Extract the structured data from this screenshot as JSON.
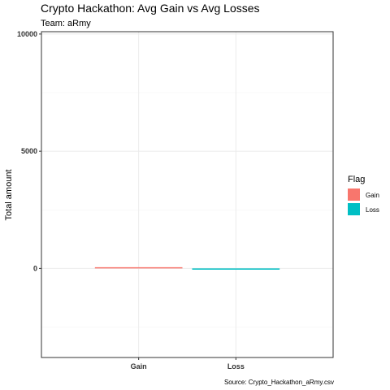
{
  "chart_data": {
    "type": "bar",
    "title": "Crypto Hackathon: Avg Gain vs Avg Losses",
    "subtitle": "Team: aRmy",
    "caption": "Source: Crypto_Hackathon_aRmy.csv",
    "xlabel": "",
    "ylabel": "Total amount",
    "categories": [
      "Gain",
      "Loss"
    ],
    "values": [
      20,
      -10
    ],
    "ylim": [
      -3800,
      10100
    ],
    "yticks": [
      0,
      5000,
      10000
    ],
    "ytick_labels": [
      "0",
      "5000",
      "10000"
    ],
    "grid": true,
    "legend": {
      "title": "Flag",
      "position": "right",
      "entries": [
        "Gain",
        "Loss"
      ]
    },
    "colors": {
      "Gain": "#F8766D",
      "Loss": "#00BFC4"
    }
  }
}
